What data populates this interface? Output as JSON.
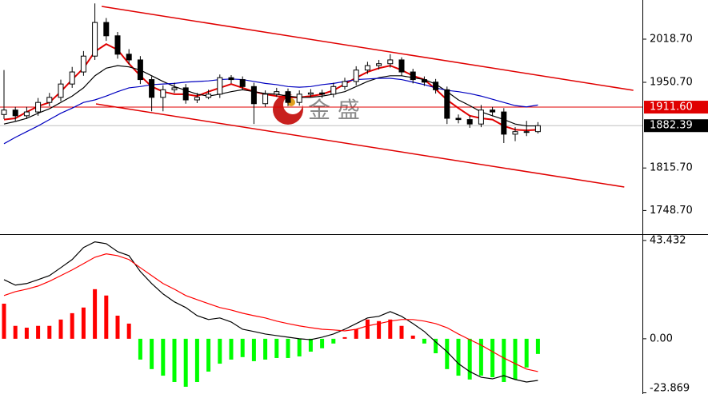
{
  "chart_data": [
    {
      "type": "candlestick",
      "candles": [
        [
          1900,
          1970,
          1893,
          1907
        ],
        [
          1907,
          1912,
          1890,
          1898
        ],
        [
          1898,
          1912,
          1893,
          1904
        ],
        [
          1904,
          1926,
          1898,
          1919
        ],
        [
          1919,
          1934,
          1913,
          1927
        ],
        [
          1927,
          1955,
          1921,
          1948
        ],
        [
          1948,
          1975,
          1942,
          1967
        ],
        [
          1967,
          2000,
          1961,
          1992
        ],
        [
          1992,
          2075,
          1986,
          2045
        ],
        [
          2045,
          2052,
          2016,
          2024
        ],
        [
          2024,
          2030,
          1988,
          1995
        ],
        [
          1995,
          2003,
          1979,
          1986
        ],
        [
          1986,
          1992,
          1948,
          1955
        ],
        [
          1955,
          1960,
          1905,
          1927
        ],
        [
          1927,
          1946,
          1905,
          1939
        ],
        [
          1939,
          1950,
          1934,
          1942
        ],
        [
          1942,
          1948,
          1917,
          1923
        ],
        [
          1923,
          1934,
          1918,
          1927
        ],
        [
          1927,
          1939,
          1924,
          1932
        ],
        [
          1932,
          1963,
          1926,
          1958
        ],
        [
          1958,
          1962,
          1949,
          1955
        ],
        [
          1955,
          1960,
          1938,
          1944
        ],
        [
          1944,
          1950,
          1885,
          1917
        ],
        [
          1917,
          1938,
          1912,
          1932
        ],
        [
          1932,
          1942,
          1928,
          1936
        ],
        [
          1936,
          1941,
          1913,
          1919
        ],
        [
          1919,
          1938,
          1914,
          1932
        ],
        [
          1932,
          1940,
          1927,
          1934
        ],
        [
          1934,
          1939,
          1926,
          1932
        ],
        [
          1932,
          1950,
          1927,
          1944
        ],
        [
          1944,
          1958,
          1939,
          1952
        ],
        [
          1952,
          1976,
          1946,
          1970
        ],
        [
          1970,
          1983,
          1964,
          1977
        ],
        [
          1977,
          1986,
          1971,
          1980
        ],
        [
          1980,
          1995,
          1974,
          1986
        ],
        [
          1986,
          1990,
          1961,
          1967
        ],
        [
          1967,
          1972,
          1949,
          1955
        ],
        [
          1955,
          1960,
          1945,
          1951
        ],
        [
          1951,
          1956,
          1933,
          1939
        ],
        [
          1939,
          1944,
          1885,
          1894
        ],
        [
          1894,
          1900,
          1886,
          1892
        ],
        [
          1892,
          1898,
          1879,
          1885
        ],
        [
          1885,
          1915,
          1880,
          1907
        ],
        [
          1907,
          1912,
          1897,
          1904
        ],
        [
          1904,
          1910,
          1855,
          1869
        ],
        [
          1869,
          1880,
          1858,
          1873
        ],
        [
          1873,
          1890,
          1866,
          1873
        ],
        [
          1873,
          1888,
          1870,
          1882.39
        ]
      ],
      "up_color": "#ffffff",
      "down_color": "#000000",
      "series": [
        {
          "color": "#e00000",
          "values": [
            1892,
            1894,
            1904,
            1913,
            1919,
            1936,
            1955,
            1973,
            1999,
            2011,
            2002,
            1980,
            1961,
            1944,
            1936,
            1932,
            1932,
            1929,
            1936,
            1942,
            1948,
            1942,
            1936,
            1932,
            1929,
            1927,
            1927,
            1929,
            1932,
            1938,
            1948,
            1958,
            1967,
            1973,
            1977,
            1970,
            1961,
            1955,
            1940,
            1923,
            1910,
            1898,
            1894,
            1892,
            1882,
            1876,
            1875,
            1876
          ]
        },
        {
          "color": "#000000",
          "values": [
            1885,
            1889,
            1894,
            1902,
            1909,
            1919,
            1929,
            1942,
            1961,
            1973,
            1977,
            1975,
            1970,
            1961,
            1952,
            1944,
            1938,
            1932,
            1929,
            1932,
            1936,
            1939,
            1936,
            1933,
            1932,
            1929,
            1927,
            1927,
            1929,
            1932,
            1936,
            1944,
            1952,
            1958,
            1961,
            1961,
            1958,
            1955,
            1948,
            1936,
            1923,
            1914,
            1904,
            1898,
            1892,
            1885,
            1882,
            1882
          ]
        },
        {
          "color": "#0000c0",
          "values": [
            1854,
            1864,
            1873,
            1882,
            1892,
            1902,
            1910,
            1919,
            1923,
            1929,
            1936,
            1942,
            1944,
            1947,
            1948,
            1949,
            1951,
            1952,
            1953,
            1955,
            1956,
            1955,
            1952,
            1949,
            1947,
            1944,
            1943,
            1944,
            1947,
            1949,
            1952,
            1955,
            1956,
            1957,
            1957,
            1955,
            1951,
            1947,
            1942,
            1938,
            1936,
            1933,
            1929,
            1924,
            1919,
            1914,
            1912,
            1915
          ]
        }
      ],
      "channels": [
        {
          "color": "#e00000",
          "x": [
            8.6,
            55.4
          ],
          "y": [
            2070.3,
            1938.1
          ]
        },
        {
          "color": "#e00000",
          "x": [
            8.1,
            54.6
          ],
          "y": [
            1916.7,
            1785.8
          ]
        }
      ],
      "hlines": [
        {
          "value": 1911.6,
          "label": "1911.60",
          "color": "#e00000"
        },
        {
          "value": 1882.39,
          "label": "1882.39",
          "color": "#000000"
        }
      ],
      "watermark": "金 盛",
      "ylim": [
        1712.7,
        2080.4
      ],
      "yticks": [
        {
          "value": 2018.7,
          "label": "2018.70"
        },
        {
          "value": 1950.7,
          "label": "1950.70"
        },
        {
          "value": 1815.7,
          "label": "1815.70"
        },
        {
          "value": 1748.7,
          "label": "1748.70"
        }
      ]
    },
    {
      "type": "macd",
      "histogram": {
        "up_color": "#ff0000",
        "down_color": "#00ff00",
        "values": [
          15.5,
          5.7,
          4.9,
          5.7,
          5.7,
          8.5,
          11.3,
          13.8,
          21.9,
          19.1,
          10.2,
          6.7,
          -9.2,
          -13.4,
          -16.3,
          -19.1,
          -21.2,
          -19.1,
          -14.5,
          -11.0,
          -9.2,
          -8.1,
          -9.9,
          -9.2,
          -8.5,
          -8.5,
          -7.8,
          -5.7,
          -4.2,
          -2.1,
          0.7,
          4.2,
          8.5,
          7.8,
          8.5,
          5.7,
          1.4,
          -2.1,
          -6.4,
          -13.4,
          -16.3,
          -18.0,
          -16.3,
          -17.0,
          -19.1,
          -18.0,
          -12.7,
          -6.7
        ]
      },
      "series": [
        {
          "color": "#000000",
          "values": [
            26.1,
            23.7,
            24.4,
            26.1,
            27.9,
            31.4,
            35.0,
            40.3,
            42.8,
            42.0,
            38.5,
            36.7,
            29.7,
            24.4,
            19.8,
            16.3,
            13.8,
            10.2,
            8.5,
            9.2,
            7.4,
            4.2,
            3.2,
            2.1,
            1.4,
            0.7,
            0,
            -0.4,
            0.7,
            2.1,
            4.2,
            6.7,
            9.2,
            9.9,
            12.0,
            9.9,
            6.7,
            3.2,
            -1.4,
            -5.7,
            -11.0,
            -14.5,
            -17.0,
            -17.7,
            -16.3,
            -18.0,
            -19.1,
            -18.4
          ]
        },
        {
          "color": "#ff0000",
          "values": [
            19.1,
            20.8,
            21.9,
            23.3,
            25.4,
            27.9,
            30.4,
            33.2,
            36.0,
            37.5,
            36.7,
            35.0,
            31.4,
            27.9,
            24.4,
            21.9,
            19.1,
            17.3,
            15.5,
            13.8,
            12.7,
            11.3,
            10.2,
            9.2,
            7.8,
            6.7,
            5.7,
            4.9,
            4.2,
            3.9,
            3.5,
            4.2,
            5.7,
            6.7,
            7.8,
            8.5,
            8.5,
            7.8,
            6.7,
            4.9,
            2.1,
            -0.4,
            -2.8,
            -5.7,
            -8.5,
            -11.0,
            -13.4,
            -14.5
          ]
        }
      ],
      "ylim": [
        -24.4,
        45.5
      ],
      "yticks": [
        43.432,
        {
          "value": 0,
          "label": "0.00"
        },
        -23.869
      ]
    }
  ]
}
